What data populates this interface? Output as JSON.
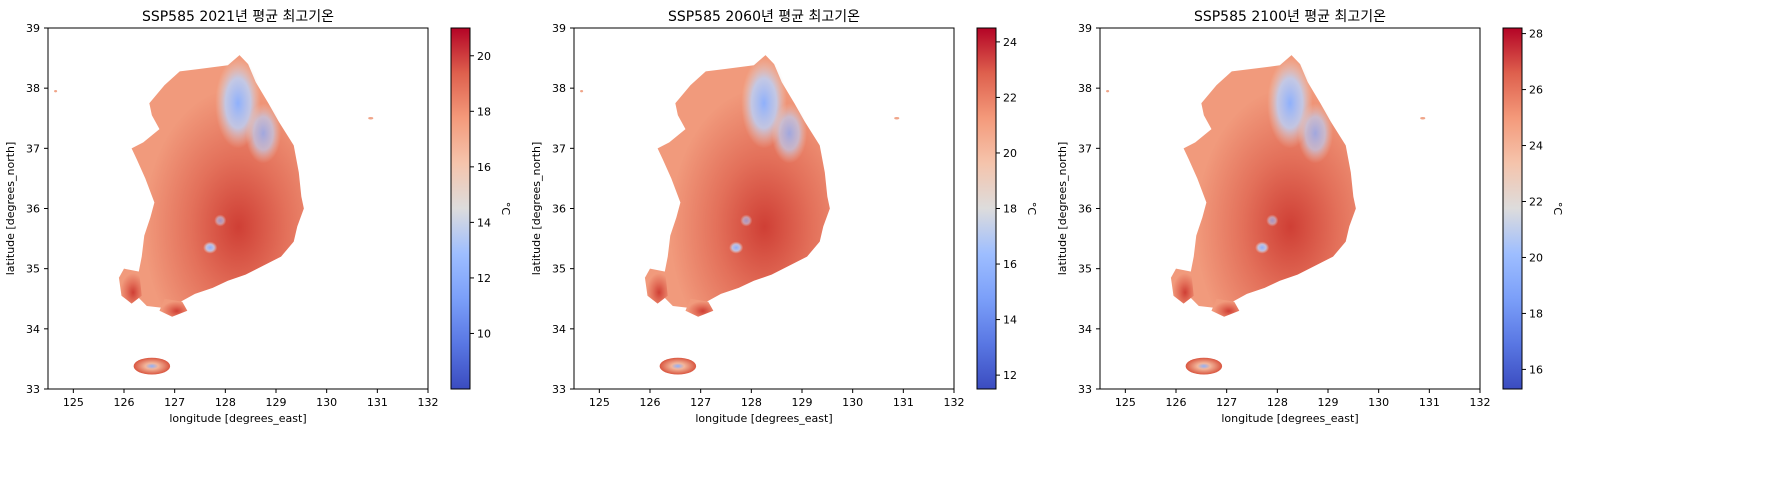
{
  "chart_data": [
    {
      "type": "heatmap",
      "title": "SSP585 2021년 평균 최고기온",
      "xlabel": "longitude [degrees_east]",
      "ylabel": "latitude [degrees_north]",
      "xlim": [
        124.5,
        132.0
      ],
      "ylim": [
        33.0,
        39.0
      ],
      "xticks": [
        125,
        126,
        127,
        128,
        129,
        130,
        131,
        132
      ],
      "yticks": [
        33,
        34,
        35,
        36,
        37,
        38,
        39
      ],
      "colorbar": {
        "label": "°C",
        "range": [
          8.0,
          21.0
        ],
        "ticks": [
          10,
          12,
          14,
          16,
          18,
          20
        ],
        "colormap": "coolwarm"
      },
      "grid": false
    },
    {
      "type": "heatmap",
      "title": "SSP585 2060년 평균 최고기온",
      "xlabel": "longitude [degrees_east]",
      "ylabel": "latitude [degrees_north]",
      "xlim": [
        124.5,
        132.0
      ],
      "ylim": [
        33.0,
        39.0
      ],
      "xticks": [
        125,
        126,
        127,
        128,
        129,
        130,
        131,
        132
      ],
      "yticks": [
        33,
        34,
        35,
        36,
        37,
        38,
        39
      ],
      "colorbar": {
        "label": "°C",
        "range": [
          11.5,
          24.5
        ],
        "ticks": [
          12,
          14,
          16,
          18,
          20,
          22,
          24
        ],
        "colormap": "coolwarm"
      },
      "grid": false
    },
    {
      "type": "heatmap",
      "title": "SSP585 2100년 평균 최고기온",
      "xlabel": "longitude [degrees_east]",
      "ylabel": "latitude [degrees_north]",
      "xlim": [
        124.5,
        132.0
      ],
      "ylim": [
        33.0,
        39.0
      ],
      "xticks": [
        125,
        126,
        127,
        128,
        129,
        130,
        131,
        132
      ],
      "yticks": [
        33,
        34,
        35,
        36,
        37,
        38,
        39
      ],
      "colorbar": {
        "label": "°C",
        "range": [
          15.3,
          28.2
        ],
        "ticks": [
          16,
          18,
          20,
          22,
          24,
          26,
          28
        ],
        "colormap": "coolwarm"
      },
      "grid": false
    }
  ]
}
